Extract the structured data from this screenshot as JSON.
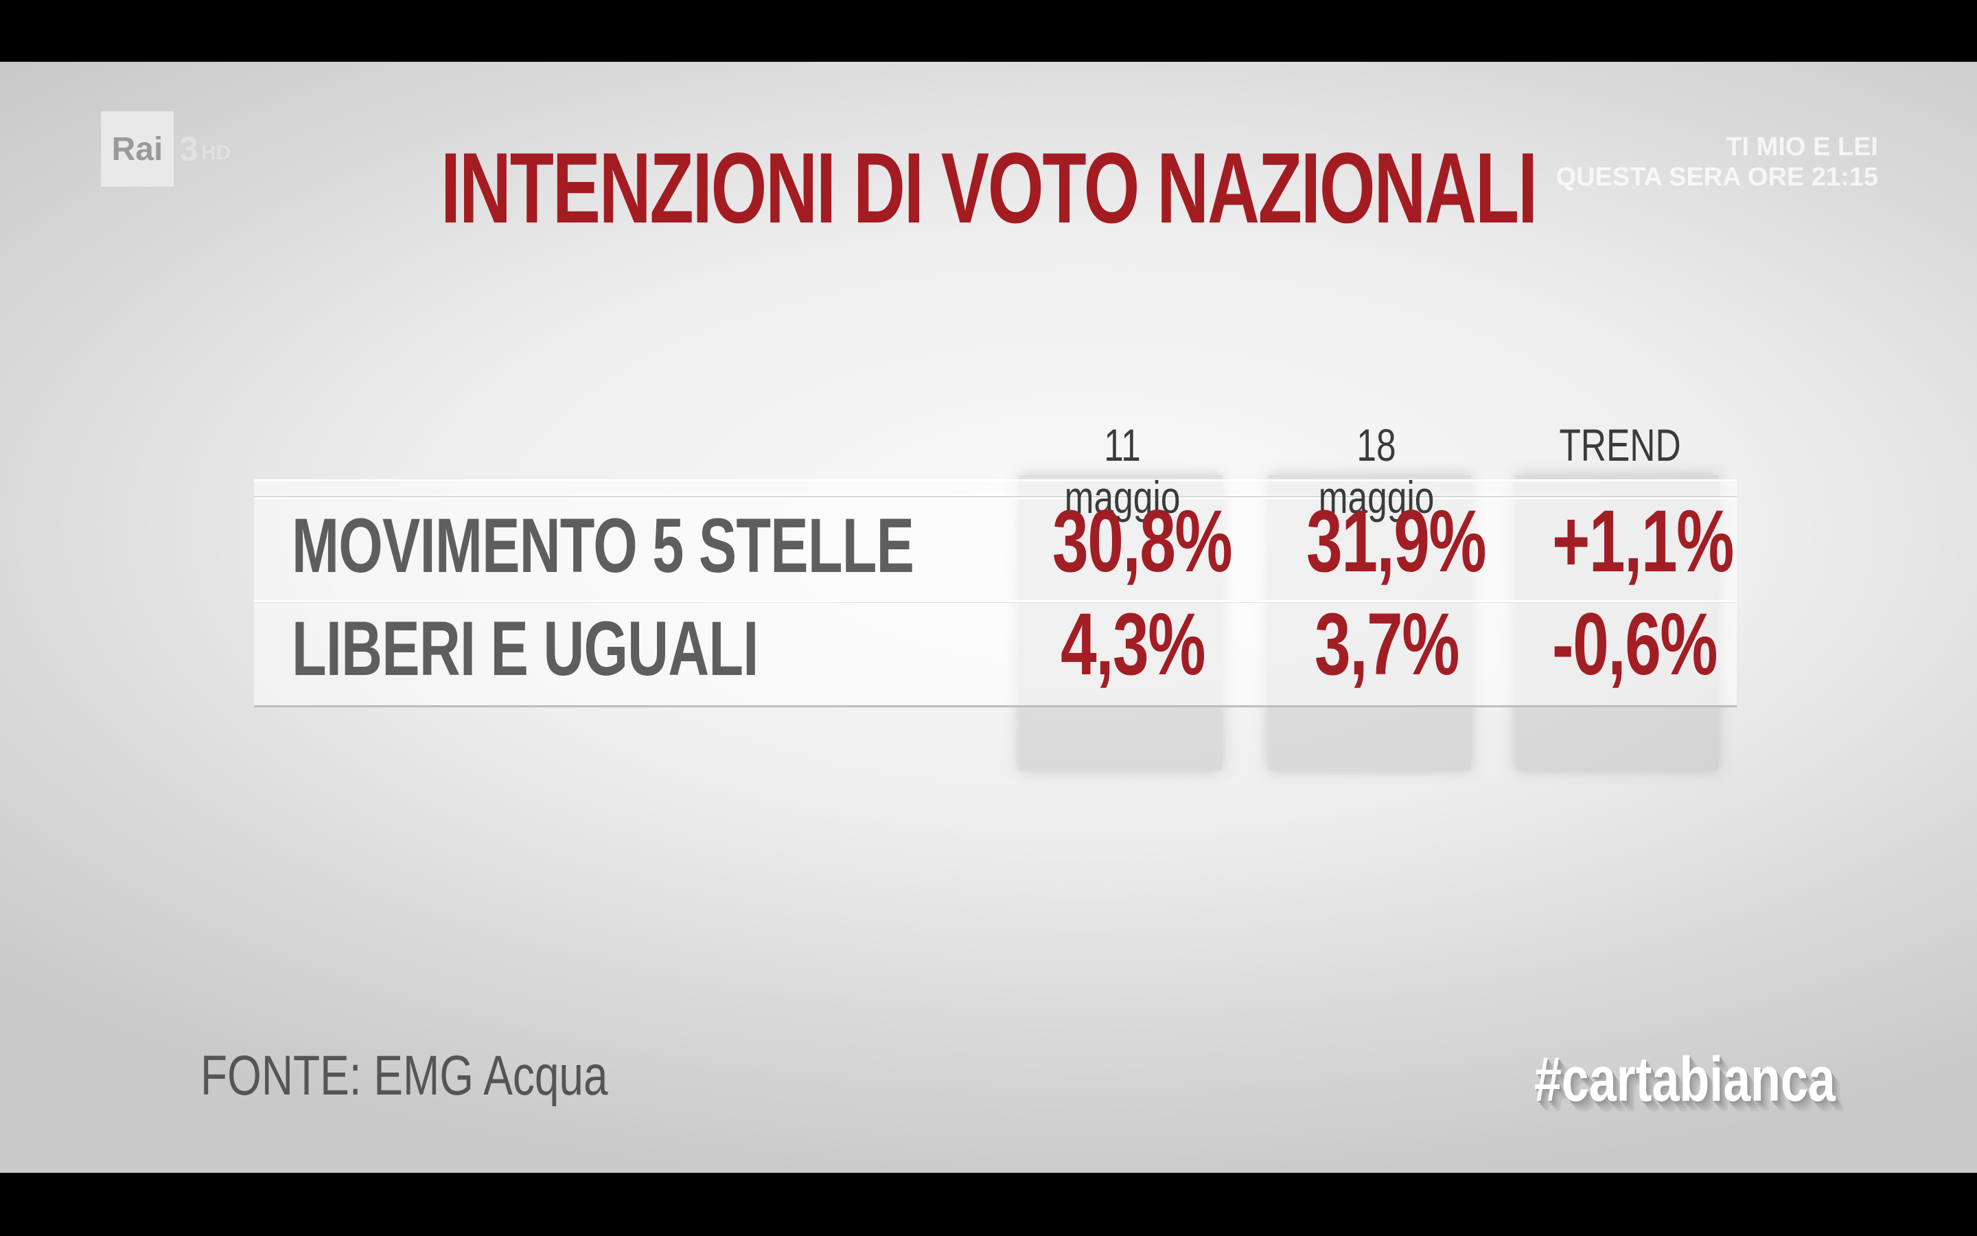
{
  "channel": {
    "logo_text": "Rai",
    "logo_number": "3",
    "logo_hd": "HD"
  },
  "promo": {
    "line1": "TI MIO E LEI",
    "line2": "QUESTA SERA ORE 21:15"
  },
  "chart_data": {
    "type": "table",
    "title": "INTENZIONI DI VOTO NAZIONALI",
    "columns": [
      "11 maggio",
      "18 maggio",
      "TREND"
    ],
    "rows": [
      {
        "party": "MOVIMENTO 5 STELLE",
        "values": [
          "30,8%",
          "31,9%",
          "+1,1%"
        ]
      },
      {
        "party": "LIBERI E UGUALI",
        "values": [
          "4,3%",
          "3,7%",
          "-0,6%"
        ]
      }
    ],
    "accent_color": "#a31c22"
  },
  "footer": {
    "source": "FONTE: EMG Acqua",
    "hashtag": "#cartabianca"
  }
}
